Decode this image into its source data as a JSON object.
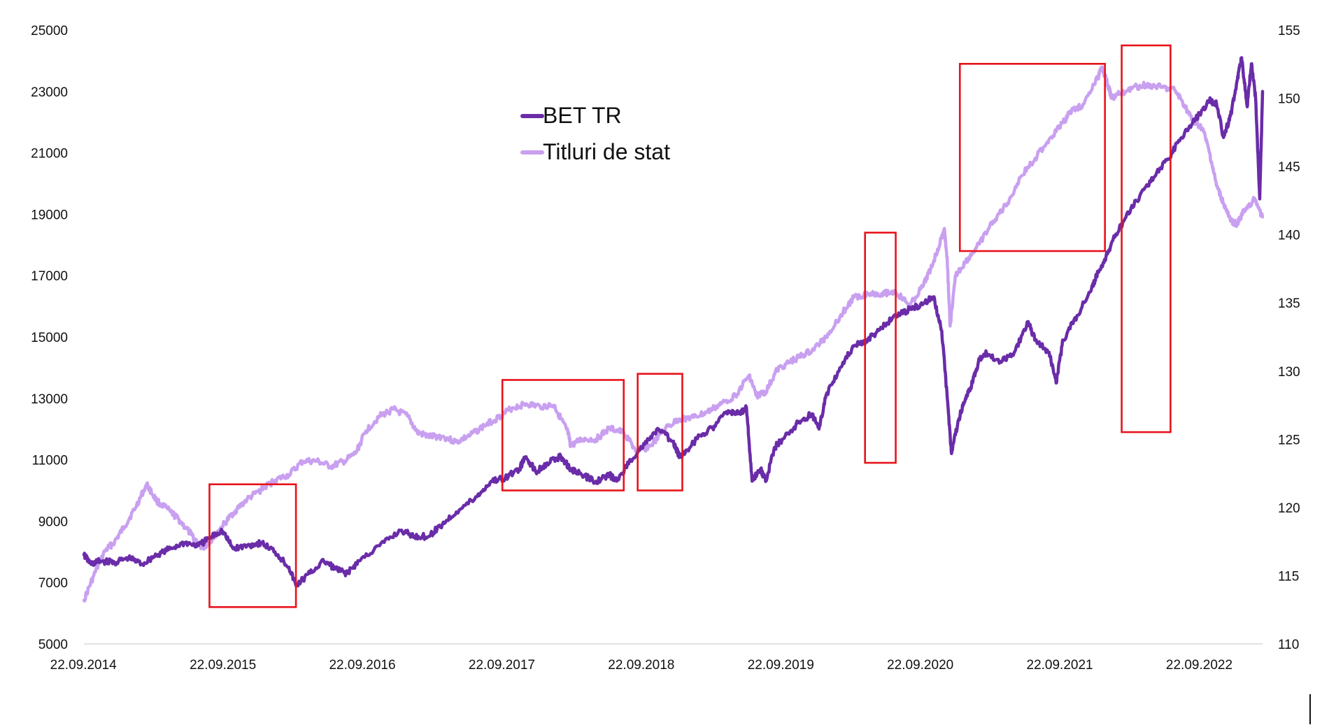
{
  "chart_data": {
    "type": "line",
    "title": "",
    "xlabel": "",
    "ylabel": "",
    "y_left_label": "",
    "y_right_label": "",
    "x_ticks": [
      "22.09.2014",
      "22.09.2015",
      "22.09.2016",
      "22.09.2017",
      "22.09.2018",
      "22.09.2019",
      "22.09.2020",
      "22.09.2021",
      "22.09.2022"
    ],
    "x_range_years": [
      2014.73,
      2023.18
    ],
    "y_left": {
      "ticks": [
        5000,
        7000,
        9000,
        11000,
        13000,
        15000,
        17000,
        19000,
        21000,
        23000,
        25000
      ],
      "range": [
        5000,
        25000
      ]
    },
    "y_right": {
      "ticks": [
        110,
        115,
        120,
        125,
        130,
        135,
        140,
        145,
        150,
        155
      ],
      "range": [
        110,
        155
      ]
    },
    "legend": {
      "position": "top-center",
      "entries": [
        "BET TR",
        "Titluri de stat"
      ]
    },
    "grid": false,
    "colors": {
      "bet_tr": "#6a2ca8",
      "titluri": "#c9a0f0",
      "highlight": "#e8121a",
      "axis": "#d9d9d9"
    },
    "series": [
      {
        "name": "BET TR",
        "axis": "left",
        "color": "#6a2ca8",
        "points": [
          [
            2014.73,
            7900
          ],
          [
            2014.78,
            7600
          ],
          [
            2014.85,
            7700
          ],
          [
            2014.95,
            7650
          ],
          [
            2015.05,
            7800
          ],
          [
            2015.15,
            7600
          ],
          [
            2015.25,
            7900
          ],
          [
            2015.35,
            8100
          ],
          [
            2015.45,
            8300
          ],
          [
            2015.55,
            8200
          ],
          [
            2015.65,
            8500
          ],
          [
            2015.72,
            8700
          ],
          [
            2015.8,
            8100
          ],
          [
            2015.9,
            8200
          ],
          [
            2016.0,
            8300
          ],
          [
            2016.1,
            8000
          ],
          [
            2016.2,
            7500
          ],
          [
            2016.25,
            6900
          ],
          [
            2016.35,
            7300
          ],
          [
            2016.45,
            7700
          ],
          [
            2016.55,
            7400
          ],
          [
            2016.62,
            7300
          ],
          [
            2016.7,
            7700
          ],
          [
            2016.85,
            8200
          ],
          [
            2017.0,
            8700
          ],
          [
            2017.1,
            8500
          ],
          [
            2017.2,
            8500
          ],
          [
            2017.3,
            8900
          ],
          [
            2017.4,
            9300
          ],
          [
            2017.55,
            9800
          ],
          [
            2017.65,
            10300
          ],
          [
            2017.75,
            10400
          ],
          [
            2017.85,
            10700
          ],
          [
            2017.9,
            11100
          ],
          [
            2017.97,
            10600
          ],
          [
            2018.05,
            10900
          ],
          [
            2018.15,
            11100
          ],
          [
            2018.22,
            10700
          ],
          [
            2018.3,
            10500
          ],
          [
            2018.4,
            10300
          ],
          [
            2018.5,
            10500
          ],
          [
            2018.55,
            10300
          ],
          [
            2018.65,
            11000
          ],
          [
            2018.75,
            11500
          ],
          [
            2018.85,
            12000
          ],
          [
            2018.95,
            11600
          ],
          [
            2019.0,
            11100
          ],
          [
            2019.05,
            11300
          ],
          [
            2019.15,
            11800
          ],
          [
            2019.25,
            12100
          ],
          [
            2019.35,
            12600
          ],
          [
            2019.42,
            12500
          ],
          [
            2019.48,
            12700
          ],
          [
            2019.52,
            10300
          ],
          [
            2019.58,
            10700
          ],
          [
            2019.62,
            10300
          ],
          [
            2019.68,
            11400
          ],
          [
            2019.75,
            11700
          ],
          [
            2019.85,
            12200
          ],
          [
            2019.95,
            12500
          ],
          [
            2020.0,
            12000
          ],
          [
            2020.05,
            13100
          ],
          [
            2020.15,
            14000
          ],
          [
            2020.25,
            14700
          ],
          [
            2020.35,
            14900
          ],
          [
            2020.45,
            15300
          ],
          [
            2020.55,
            15700
          ],
          [
            2020.65,
            15900
          ],
          [
            2020.75,
            16100
          ],
          [
            2020.82,
            16300
          ],
          [
            2020.88,
            15200
          ],
          [
            2020.92,
            13000
          ],
          [
            2020.95,
            11200
          ],
          [
            2021.0,
            12300
          ],
          [
            2021.05,
            13000
          ],
          [
            2021.1,
            13500
          ],
          [
            2021.15,
            14300
          ],
          [
            2021.2,
            14500
          ],
          [
            2021.3,
            14200
          ],
          [
            2021.4,
            14500
          ],
          [
            2021.5,
            15500
          ],
          [
            2021.55,
            14900
          ],
          [
            2021.65,
            14500
          ],
          [
            2021.7,
            13500
          ],
          [
            2021.75,
            14900
          ],
          [
            2021.85,
            15700
          ],
          [
            2021.95,
            16500
          ],
          [
            2022.0,
            17100
          ],
          [
            2022.05,
            17500
          ],
          [
            2022.1,
            18100
          ],
          [
            2022.2,
            18900
          ],
          [
            2022.3,
            19600
          ],
          [
            2022.4,
            20200
          ],
          [
            2022.5,
            20800
          ],
          [
            2022.6,
            21500
          ],
          [
            2022.7,
            22100
          ],
          [
            2022.8,
            22700
          ],
          [
            2022.85,
            22600
          ],
          [
            2022.9,
            21500
          ],
          [
            2022.95,
            22200
          ],
          [
            2023.0,
            23400
          ],
          [
            2023.03,
            24100
          ],
          [
            2023.07,
            22500
          ],
          [
            2023.1,
            23900
          ],
          [
            2023.13,
            22800
          ],
          [
            2023.16,
            19500
          ],
          [
            2023.18,
            23000
          ]
        ]
      },
      {
        "name": "Titluri de stat",
        "axis": "right",
        "color": "#c9a0f0",
        "points": [
          [
            2014.73,
            113.2
          ],
          [
            2014.8,
            115.0
          ],
          [
            2014.88,
            116.8
          ],
          [
            2014.95,
            117.5
          ],
          [
            2015.02,
            118.6
          ],
          [
            2015.1,
            120.0
          ],
          [
            2015.18,
            121.7
          ],
          [
            2015.25,
            120.5
          ],
          [
            2015.35,
            119.7
          ],
          [
            2015.42,
            119.0
          ],
          [
            2015.5,
            118.0
          ],
          [
            2015.58,
            117.0
          ],
          [
            2015.65,
            117.7
          ],
          [
            2015.72,
            118.6
          ],
          [
            2015.8,
            119.6
          ],
          [
            2015.9,
            120.6
          ],
          [
            2016.0,
            121.3
          ],
          [
            2016.1,
            122.0
          ],
          [
            2016.2,
            122.4
          ],
          [
            2016.3,
            123.4
          ],
          [
            2016.4,
            123.4
          ],
          [
            2016.5,
            123.0
          ],
          [
            2016.6,
            123.4
          ],
          [
            2016.68,
            124.0
          ],
          [
            2016.75,
            125.6
          ],
          [
            2016.85,
            126.7
          ],
          [
            2016.95,
            127.2
          ],
          [
            2017.05,
            126.7
          ],
          [
            2017.12,
            125.5
          ],
          [
            2017.2,
            125.2
          ],
          [
            2017.3,
            125.2
          ],
          [
            2017.4,
            124.8
          ],
          [
            2017.5,
            125.3
          ],
          [
            2017.6,
            126.0
          ],
          [
            2017.7,
            126.6
          ],
          [
            2017.8,
            127.3
          ],
          [
            2017.9,
            127.6
          ],
          [
            2018.0,
            127.4
          ],
          [
            2018.1,
            127.5
          ],
          [
            2018.15,
            126.5
          ],
          [
            2018.2,
            125.5
          ],
          [
            2018.22,
            124.5
          ],
          [
            2018.3,
            125.0
          ],
          [
            2018.4,
            125.0
          ],
          [
            2018.5,
            125.8
          ],
          [
            2018.6,
            125.5
          ],
          [
            2018.7,
            124.0
          ],
          [
            2018.8,
            124.6
          ],
          [
            2018.9,
            125.8
          ],
          [
            2019.0,
            126.5
          ],
          [
            2019.1,
            126.6
          ],
          [
            2019.2,
            127.0
          ],
          [
            2019.3,
            127.6
          ],
          [
            2019.4,
            128.2
          ],
          [
            2019.5,
            129.7
          ],
          [
            2019.55,
            128.2
          ],
          [
            2019.62,
            128.5
          ],
          [
            2019.7,
            130.1
          ],
          [
            2019.78,
            130.6
          ],
          [
            2019.85,
            131.0
          ],
          [
            2019.95,
            131.5
          ],
          [
            2020.05,
            132.5
          ],
          [
            2020.15,
            134.0
          ],
          [
            2020.25,
            135.4
          ],
          [
            2020.35,
            135.7
          ],
          [
            2020.45,
            135.7
          ],
          [
            2020.55,
            135.8
          ],
          [
            2020.65,
            134.8
          ],
          [
            2020.75,
            136.3
          ],
          [
            2020.82,
            138.0
          ],
          [
            2020.88,
            139.8
          ],
          [
            2020.9,
            140.3
          ],
          [
            2020.92,
            138.0
          ],
          [
            2020.94,
            133.3
          ],
          [
            2020.98,
            137.0
          ],
          [
            2021.05,
            138.0
          ],
          [
            2021.15,
            139.3
          ],
          [
            2021.25,
            141.0
          ],
          [
            2021.35,
            142.3
          ],
          [
            2021.45,
            144.3
          ],
          [
            2021.55,
            145.6
          ],
          [
            2021.65,
            147.0
          ],
          [
            2021.75,
            148.2
          ],
          [
            2021.8,
            149.0
          ],
          [
            2021.9,
            149.6
          ],
          [
            2022.0,
            151.5
          ],
          [
            2022.03,
            152.3
          ],
          [
            2022.07,
            151.0
          ],
          [
            2022.1,
            150.0
          ],
          [
            2022.15,
            150.3
          ],
          [
            2022.25,
            150.8
          ],
          [
            2022.35,
            151.0
          ],
          [
            2022.45,
            150.8
          ],
          [
            2022.55,
            150.6
          ],
          [
            2022.62,
            149.5
          ],
          [
            2022.68,
            148.3
          ],
          [
            2022.75,
            147.8
          ],
          [
            2022.8,
            146.0
          ],
          [
            2022.85,
            143.6
          ],
          [
            2022.9,
            142.3
          ],
          [
            2022.95,
            141.0
          ],
          [
            2023.0,
            140.8
          ],
          [
            2023.05,
            141.8
          ],
          [
            2023.12,
            142.6
          ],
          [
            2023.18,
            141.3
          ]
        ]
      }
    ],
    "highlight_boxes": [
      {
        "x_from": 2015.63,
        "x_to": 2016.25,
        "y_from": 6200,
        "y_to": 10200
      },
      {
        "x_from": 2017.73,
        "x_to": 2018.6,
        "y_from": 10000,
        "y_to": 13600
      },
      {
        "x_from": 2018.7,
        "x_to": 2019.02,
        "y_from": 10000,
        "y_to": 13800
      },
      {
        "x_from": 2020.33,
        "x_to": 2020.55,
        "y_from": 10900,
        "y_to": 18400
      },
      {
        "x_from": 2021.01,
        "x_to": 2022.05,
        "y_from": 17800,
        "y_to": 23900
      },
      {
        "x_from": 2022.17,
        "x_to": 2022.52,
        "y_from": 11900,
        "y_to": 24500
      }
    ]
  }
}
